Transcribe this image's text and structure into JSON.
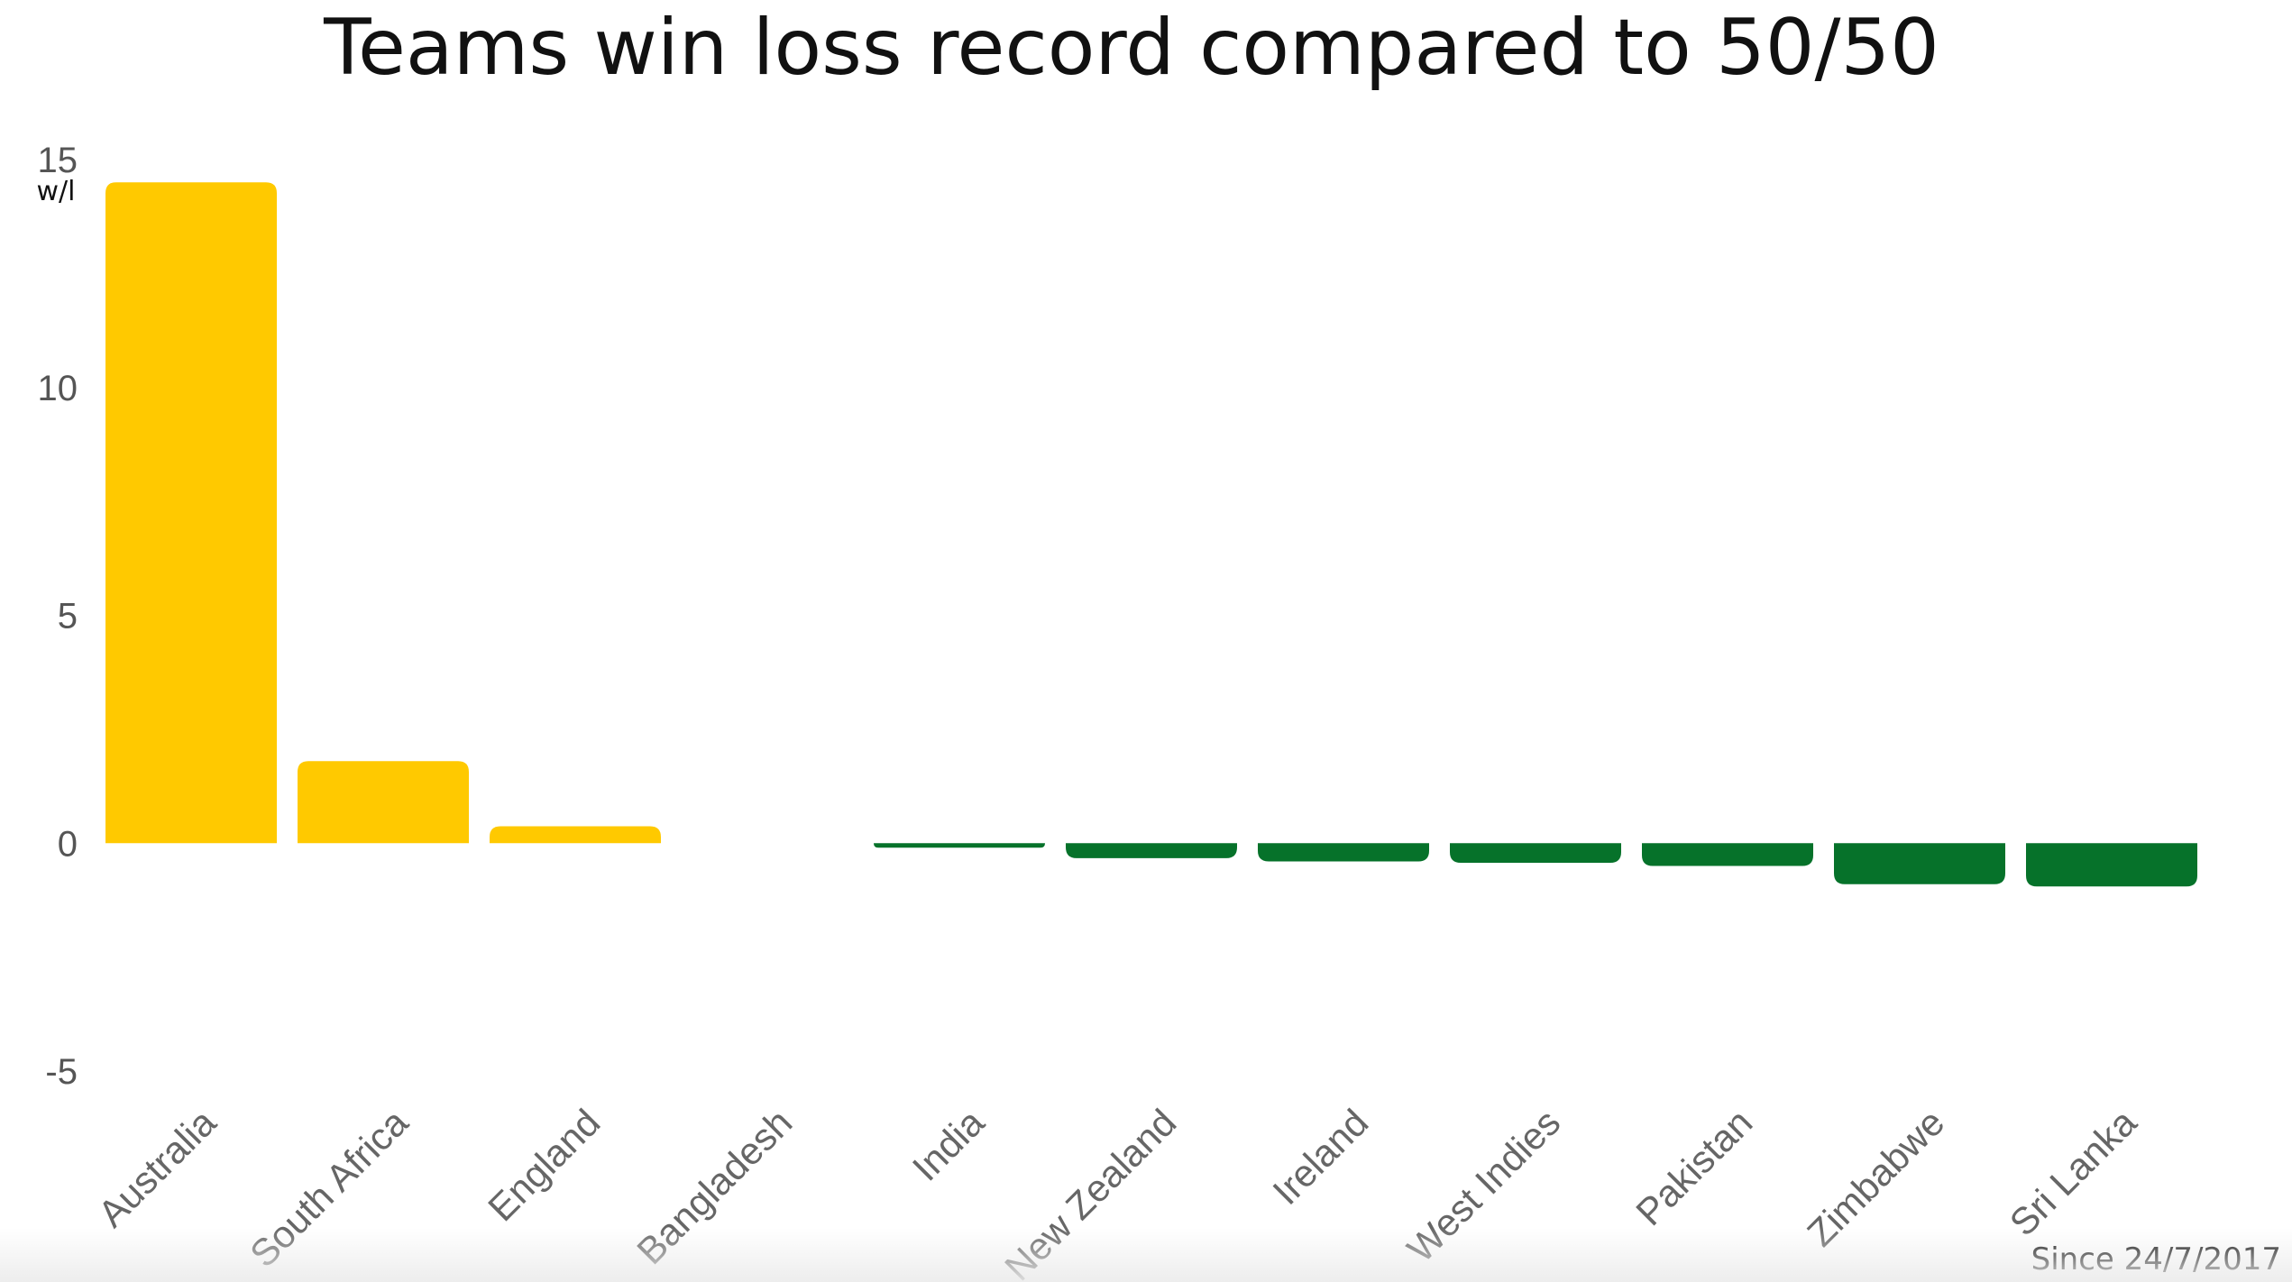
{
  "chart_data": {
    "type": "bar",
    "title": "Teams win loss record compared to 50/50",
    "ylabel": "w/l",
    "xlabel": "",
    "ylim": [
      -5,
      15
    ],
    "yticks": [
      15,
      10,
      5,
      0,
      -5
    ],
    "categories": [
      "Australia",
      "South Africa",
      "England",
      "Bangladesh",
      "India",
      "New Zealand",
      "Ireland",
      "West Indies",
      "Pakistan",
      "Zimbabwe",
      "Sri Lanka"
    ],
    "values": [
      14.5,
      1.8,
      0.37,
      0,
      -0.1,
      -0.33,
      -0.4,
      -0.43,
      -0.5,
      -0.9,
      -0.95
    ],
    "note": "Since 24/7/2017",
    "grid": false,
    "colors": {
      "positive": "#FFC900",
      "negative": "#06722A"
    }
  }
}
